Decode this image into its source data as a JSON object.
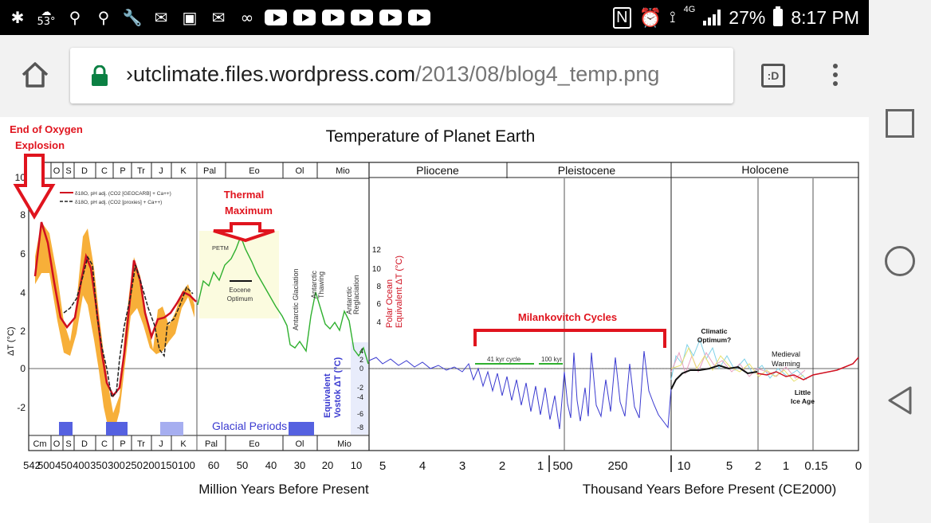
{
  "status_bar": {
    "weather_temp": "53°",
    "battery": "27%",
    "time": "8:17 PM",
    "network": "4G"
  },
  "browser": {
    "url_domain": "›utclimate.files.wordpress.com",
    "url_path": "/2013/08/blog4_temp.png",
    "tab_switcher_label": ":D"
  },
  "chart": {
    "title": "Temperature of Planet Earth",
    "annotations": {
      "oxygen": [
        "End of Oxygen",
        "Explosion"
      ],
      "thermal": [
        "Thermal",
        "Maximum"
      ],
      "milankovitch": "Milankovitch Cycles",
      "petm": "PETM",
      "eocene_optimum": [
        "Eocene",
        "Optimum"
      ],
      "antarctic_glaciation": "Antarctic Glaciation",
      "antarctic_thawing": [
        "Antarctic",
        "Thawing"
      ],
      "antarctic_reglaciation": [
        "Antarctic",
        "Reglaciation"
      ],
      "glacial_periods": "Glacial Periods",
      "kyr41": "41 kyr cycle",
      "kyr100": "100 kyr",
      "climatic_optimum": [
        "Climatic",
        "Optimum?"
      ],
      "medieval_warming": [
        "Medieval",
        "Warming"
      ],
      "little_ice_age": [
        "Little",
        "Ice Age"
      ]
    },
    "legend": [
      "δ18O, pH adj. (CO2 [GEOCARB] + Ca++)",
      "δ18O, pH adj. (CO2 [proxies] + Ca++)"
    ],
    "y_axis_label": "ΔT (°C)",
    "y_ticks": [
      "10",
      "8",
      "6",
      "4",
      "2",
      "0",
      "-2"
    ],
    "polar_label": [
      "Polar Ocean",
      "Equivalent ΔT (°C)"
    ],
    "polar_ticks": [
      "12",
      "10",
      "8",
      "6",
      "4"
    ],
    "vostok_label": [
      "Equivalent",
      "Vostok ΔT (°C)"
    ],
    "vostok_ticks": [
      "4",
      "2",
      "0",
      "-2",
      "-4",
      "-6",
      "-8"
    ],
    "top_periods_left": [
      "O",
      "S",
      "D",
      "C",
      "P",
      "Tr",
      "J",
      "K",
      "Pal",
      "Eo",
      "Ol",
      "Mio"
    ],
    "bottom_periods": [
      "Cm",
      "O",
      "S",
      "D",
      "C",
      "P",
      "Tr",
      "J",
      "K",
      "Pal",
      "Eo",
      "Ol",
      "Mio"
    ],
    "epochs": [
      "Pliocene",
      "Pleistocene",
      "Holocene"
    ],
    "x_ticks_myr": [
      "542",
      "500",
      "450",
      "400",
      "350",
      "300",
      "250",
      "200",
      "150",
      "100",
      "60",
      "50",
      "40",
      "30",
      "20",
      "10",
      "5",
      "4",
      "3",
      "2",
      "1"
    ],
    "x_ticks_kyr": [
      "500",
      "250",
      "10",
      "5",
      "2",
      "1",
      "0.15",
      "0"
    ],
    "x_label_myr": "Million Years Before Present",
    "x_label_kyr": "Thousand Years Before Present (CE2000)"
  }
}
